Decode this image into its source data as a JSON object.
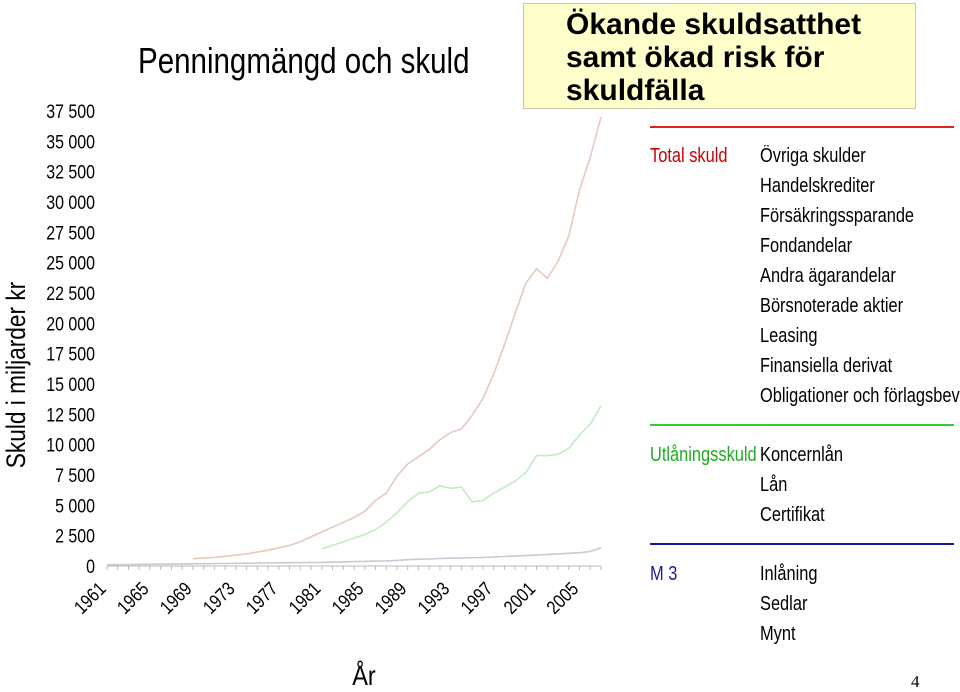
{
  "chart_data": {
    "type": "line",
    "title": "Penningmängd och skuld",
    "xlabel": "År",
    "ylabel": "Skuld i miljarder kr",
    "ylim": [
      0,
      37500
    ],
    "yticks": [
      "37 500",
      "35 000",
      "32 500",
      "30 000",
      "27 500",
      "25 000",
      "22 500",
      "20 000",
      "17 500",
      "15 000",
      "12 500",
      "10 000",
      "7 500",
      "5 000",
      "2 500",
      "0"
    ],
    "x": [
      1961,
      1962,
      1963,
      1964,
      1965,
      1966,
      1967,
      1968,
      1969,
      1970,
      1971,
      1972,
      1973,
      1974,
      1975,
      1976,
      1977,
      1978,
      1979,
      1980,
      1981,
      1982,
      1983,
      1984,
      1985,
      1986,
      1987,
      1988,
      1989,
      1990,
      1991,
      1992,
      1993,
      1994,
      1995,
      1996,
      1997,
      1998,
      1999,
      2000,
      2001,
      2002,
      2003,
      2004,
      2005,
      2006,
      2007
    ],
    "xticks": [
      "1961",
      "1965",
      "1969",
      "1973",
      "1977",
      "1981",
      "1985",
      "1989",
      "1993",
      "1997",
      "2001",
      "2005"
    ],
    "series": [
      {
        "name": "Total skuld",
        "color": "#e8c8bc",
        "values": [
          null,
          null,
          null,
          null,
          null,
          null,
          null,
          null,
          600,
          650,
          700,
          800,
          900,
          1000,
          1150,
          1300,
          1500,
          1700,
          2000,
          2400,
          2800,
          3200,
          3600,
          4000,
          4500,
          5400,
          6000,
          7400,
          8400,
          9000,
          9600,
          10400,
          11000,
          11300,
          12400,
          13800,
          15800,
          18200,
          20800,
          23300,
          24500,
          23700,
          25100,
          27200,
          31000,
          33700,
          37000
        ]
      },
      {
        "name": "Utlåningsskuld",
        "color": "#c0ecc0",
        "values": [
          null,
          null,
          null,
          null,
          null,
          null,
          null,
          null,
          null,
          null,
          null,
          null,
          null,
          null,
          null,
          null,
          null,
          null,
          null,
          null,
          1400,
          1700,
          2000,
          2300,
          2600,
          3000,
          3600,
          4400,
          5300,
          6000,
          6100,
          6600,
          6400,
          6500,
          5300,
          5400,
          6000,
          6500,
          7000,
          7700,
          9100,
          9100,
          9200,
          9700,
          10800,
          11700,
          13200
        ]
      },
      {
        "name": "M 3",
        "color": "#c4ccd8",
        "values": [
          100,
          110,
          120,
          130,
          140,
          150,
          160,
          170,
          180,
          190,
          200,
          210,
          220,
          230,
          240,
          250,
          260,
          270,
          280,
          290,
          300,
          320,
          340,
          360,
          380,
          400,
          420,
          460,
          520,
          560,
          580,
          620,
          640,
          660,
          680,
          700,
          740,
          780,
          820,
          860,
          900,
          950,
          1000,
          1050,
          1100,
          1200,
          1500
        ]
      }
    ]
  },
  "callout": {
    "lines": [
      "Ökande skuldsatthet",
      "samt ökad risk för",
      "skuldfälla"
    ]
  },
  "legend": [
    {
      "label": "Total skuld",
      "color": "#cc0000",
      "line_color": "#dd2222",
      "components": [
        "Övriga skulder",
        "Handelskrediter",
        "Försäkringssparande",
        "Fondandelar",
        "Andra ägarandelar",
        "Börsnoterade aktier",
        "Leasing",
        "Finansiella derivat",
        "Obligationer och förlagsbevis"
      ]
    },
    {
      "label": "Utlåningsskuld",
      "color": "#22aa22",
      "line_color": "#33cc33",
      "components": [
        "Koncernlån",
        "Lån",
        "Certifikat"
      ]
    },
    {
      "label": "M 3",
      "color": "#1a1a99",
      "line_color": "#1a1a99",
      "components": [
        "Inlåning",
        "Sedlar",
        "Mynt"
      ]
    }
  ],
  "page_number": "4"
}
